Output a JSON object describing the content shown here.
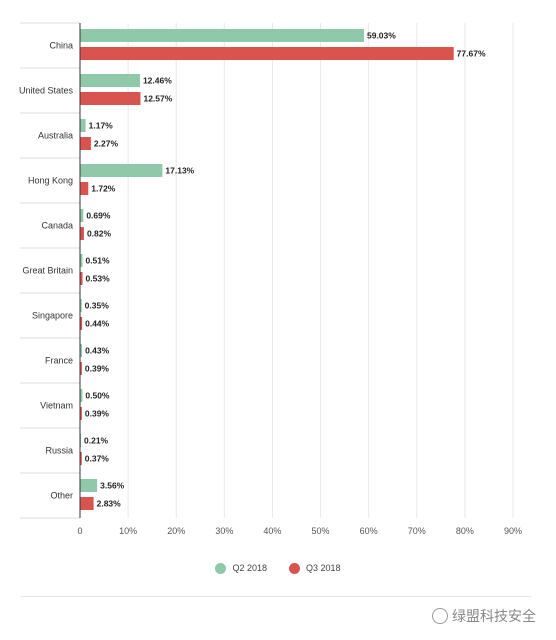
{
  "chart_data": {
    "type": "bar",
    "orientation": "horizontal",
    "categories": [
      "China",
      "United States",
      "Australia",
      "Hong Kong",
      "Canada",
      "Great Britain",
      "Singapore",
      "France",
      "Vietnam",
      "Russia",
      "Other"
    ],
    "series": [
      {
        "name": "Q2 2018",
        "color": "#8fc9a9",
        "values": [
          59.03,
          12.46,
          1.17,
          17.13,
          0.69,
          0.51,
          0.35,
          0.43,
          0.5,
          0.21,
          3.56
        ]
      },
      {
        "name": "Q3 2018",
        "color": "#d9534f",
        "values": [
          77.67,
          12.57,
          2.27,
          1.72,
          0.82,
          0.53,
          0.44,
          0.39,
          0.39,
          0.37,
          2.83
        ]
      }
    ],
    "value_labels": [
      [
        "59.03%",
        "12.46%",
        "1.17%",
        "17.13%",
        "0.69%",
        "0.51%",
        "0.35%",
        "0.43%",
        "0.50%",
        "0.21%",
        "3.56%"
      ],
      [
        "77.67%",
        "12.57%",
        "2.27%",
        "1.72%",
        "0.82%",
        "0.53%",
        "0.44%",
        "0.39%",
        "0.39%",
        "0.37%",
        "2.83%"
      ]
    ],
    "xlim": [
      0,
      90
    ],
    "xticks": [
      0,
      10,
      20,
      30,
      40,
      50,
      60,
      70,
      80,
      90
    ],
    "xtick_labels": [
      "0",
      "10%",
      "20%",
      "30%",
      "40%",
      "50%",
      "60%",
      "70%",
      "80%",
      "90%"
    ],
    "grid": true,
    "legend_position": "bottom-center"
  },
  "watermark": {
    "text": "绿盟科技安全"
  }
}
